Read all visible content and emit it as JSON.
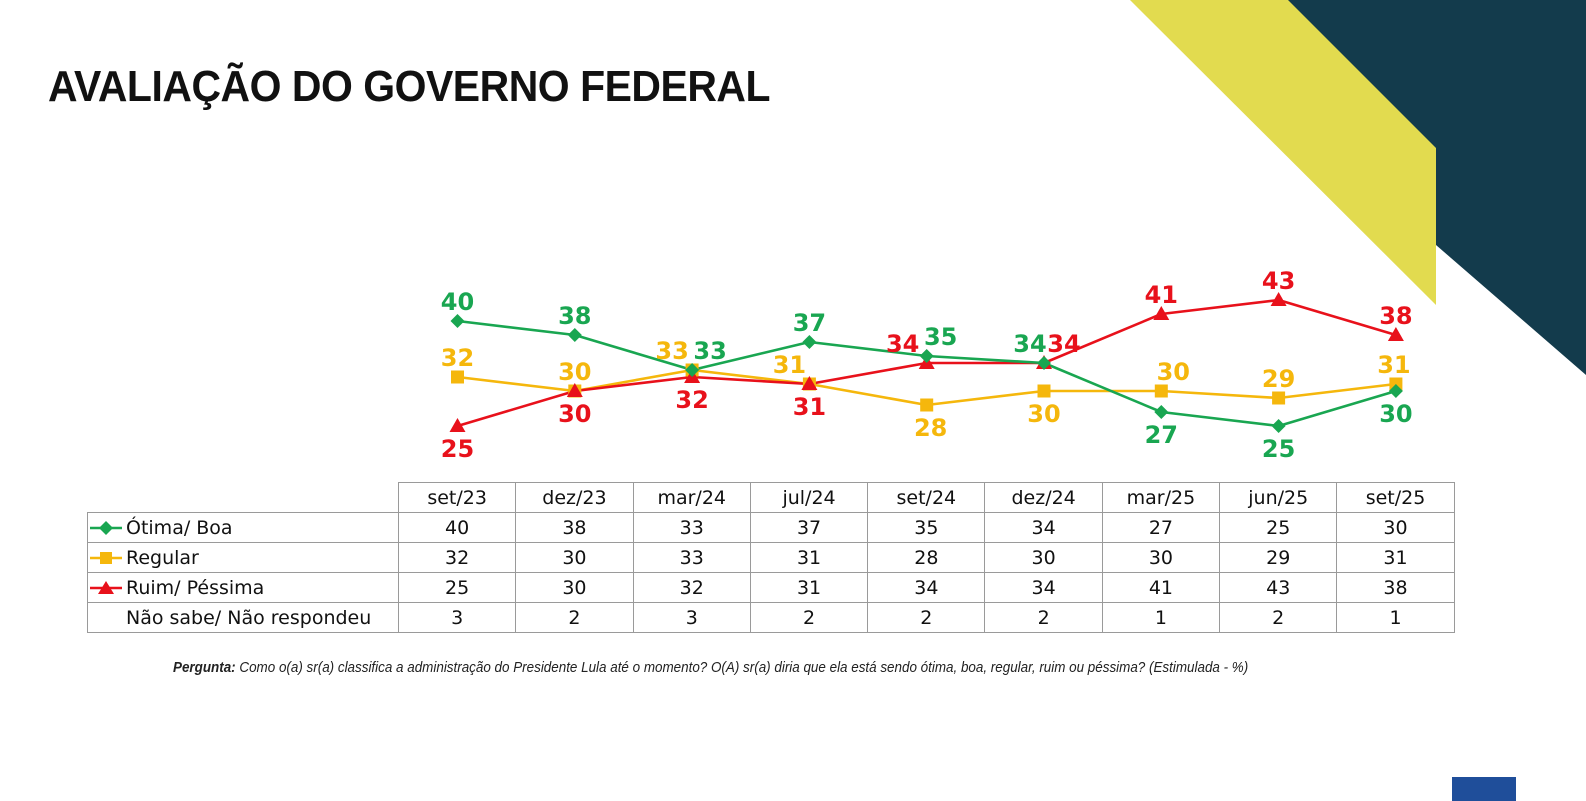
{
  "page": {
    "title": "AVALIAÇÃO DO GOVERNO FEDERAL",
    "question_label": "Pergunta:",
    "question_text": "Como o(a) sr(a) classifica a administração do Presidente Lula até o momento? O(A) sr(a) diria que ela está sendo ótima, boa, regular, ruim ou péssima? (Estimulada - %)"
  },
  "colors": {
    "decor_yellow": "#e2db4f",
    "decor_navy": "#133b4c",
    "logo_blue": "#1f4e9a"
  },
  "chart_data": {
    "type": "line",
    "title": "",
    "xlabel": "",
    "ylabel": "",
    "ylim": [
      20,
      46
    ],
    "grid": false,
    "legend": "table-left",
    "x": [
      "set/23",
      "dez/23",
      "mar/24",
      "jul/24",
      "set/24",
      "dez/24",
      "mar/25",
      "jun/25",
      "set/25"
    ],
    "series": [
      {
        "name": "Ótima/ Boa",
        "color": "#19a651",
        "marker": "diamond",
        "values": [
          40,
          38,
          33,
          37,
          35,
          34,
          27,
          25,
          30
        ]
      },
      {
        "name": "Regular",
        "color": "#f5b70c",
        "marker": "square",
        "values": [
          32,
          30,
          33,
          31,
          28,
          30,
          30,
          29,
          31
        ]
      },
      {
        "name": "Ruim/ Péssima",
        "color": "#e8111b",
        "marker": "triangle",
        "values": [
          25,
          30,
          32,
          31,
          34,
          34,
          41,
          43,
          38
        ]
      }
    ],
    "table_extra_rows": [
      {
        "name": "Não sabe/ Não respondeu",
        "values": [
          3,
          2,
          3,
          2,
          2,
          2,
          1,
          2,
          1
        ]
      }
    ]
  }
}
